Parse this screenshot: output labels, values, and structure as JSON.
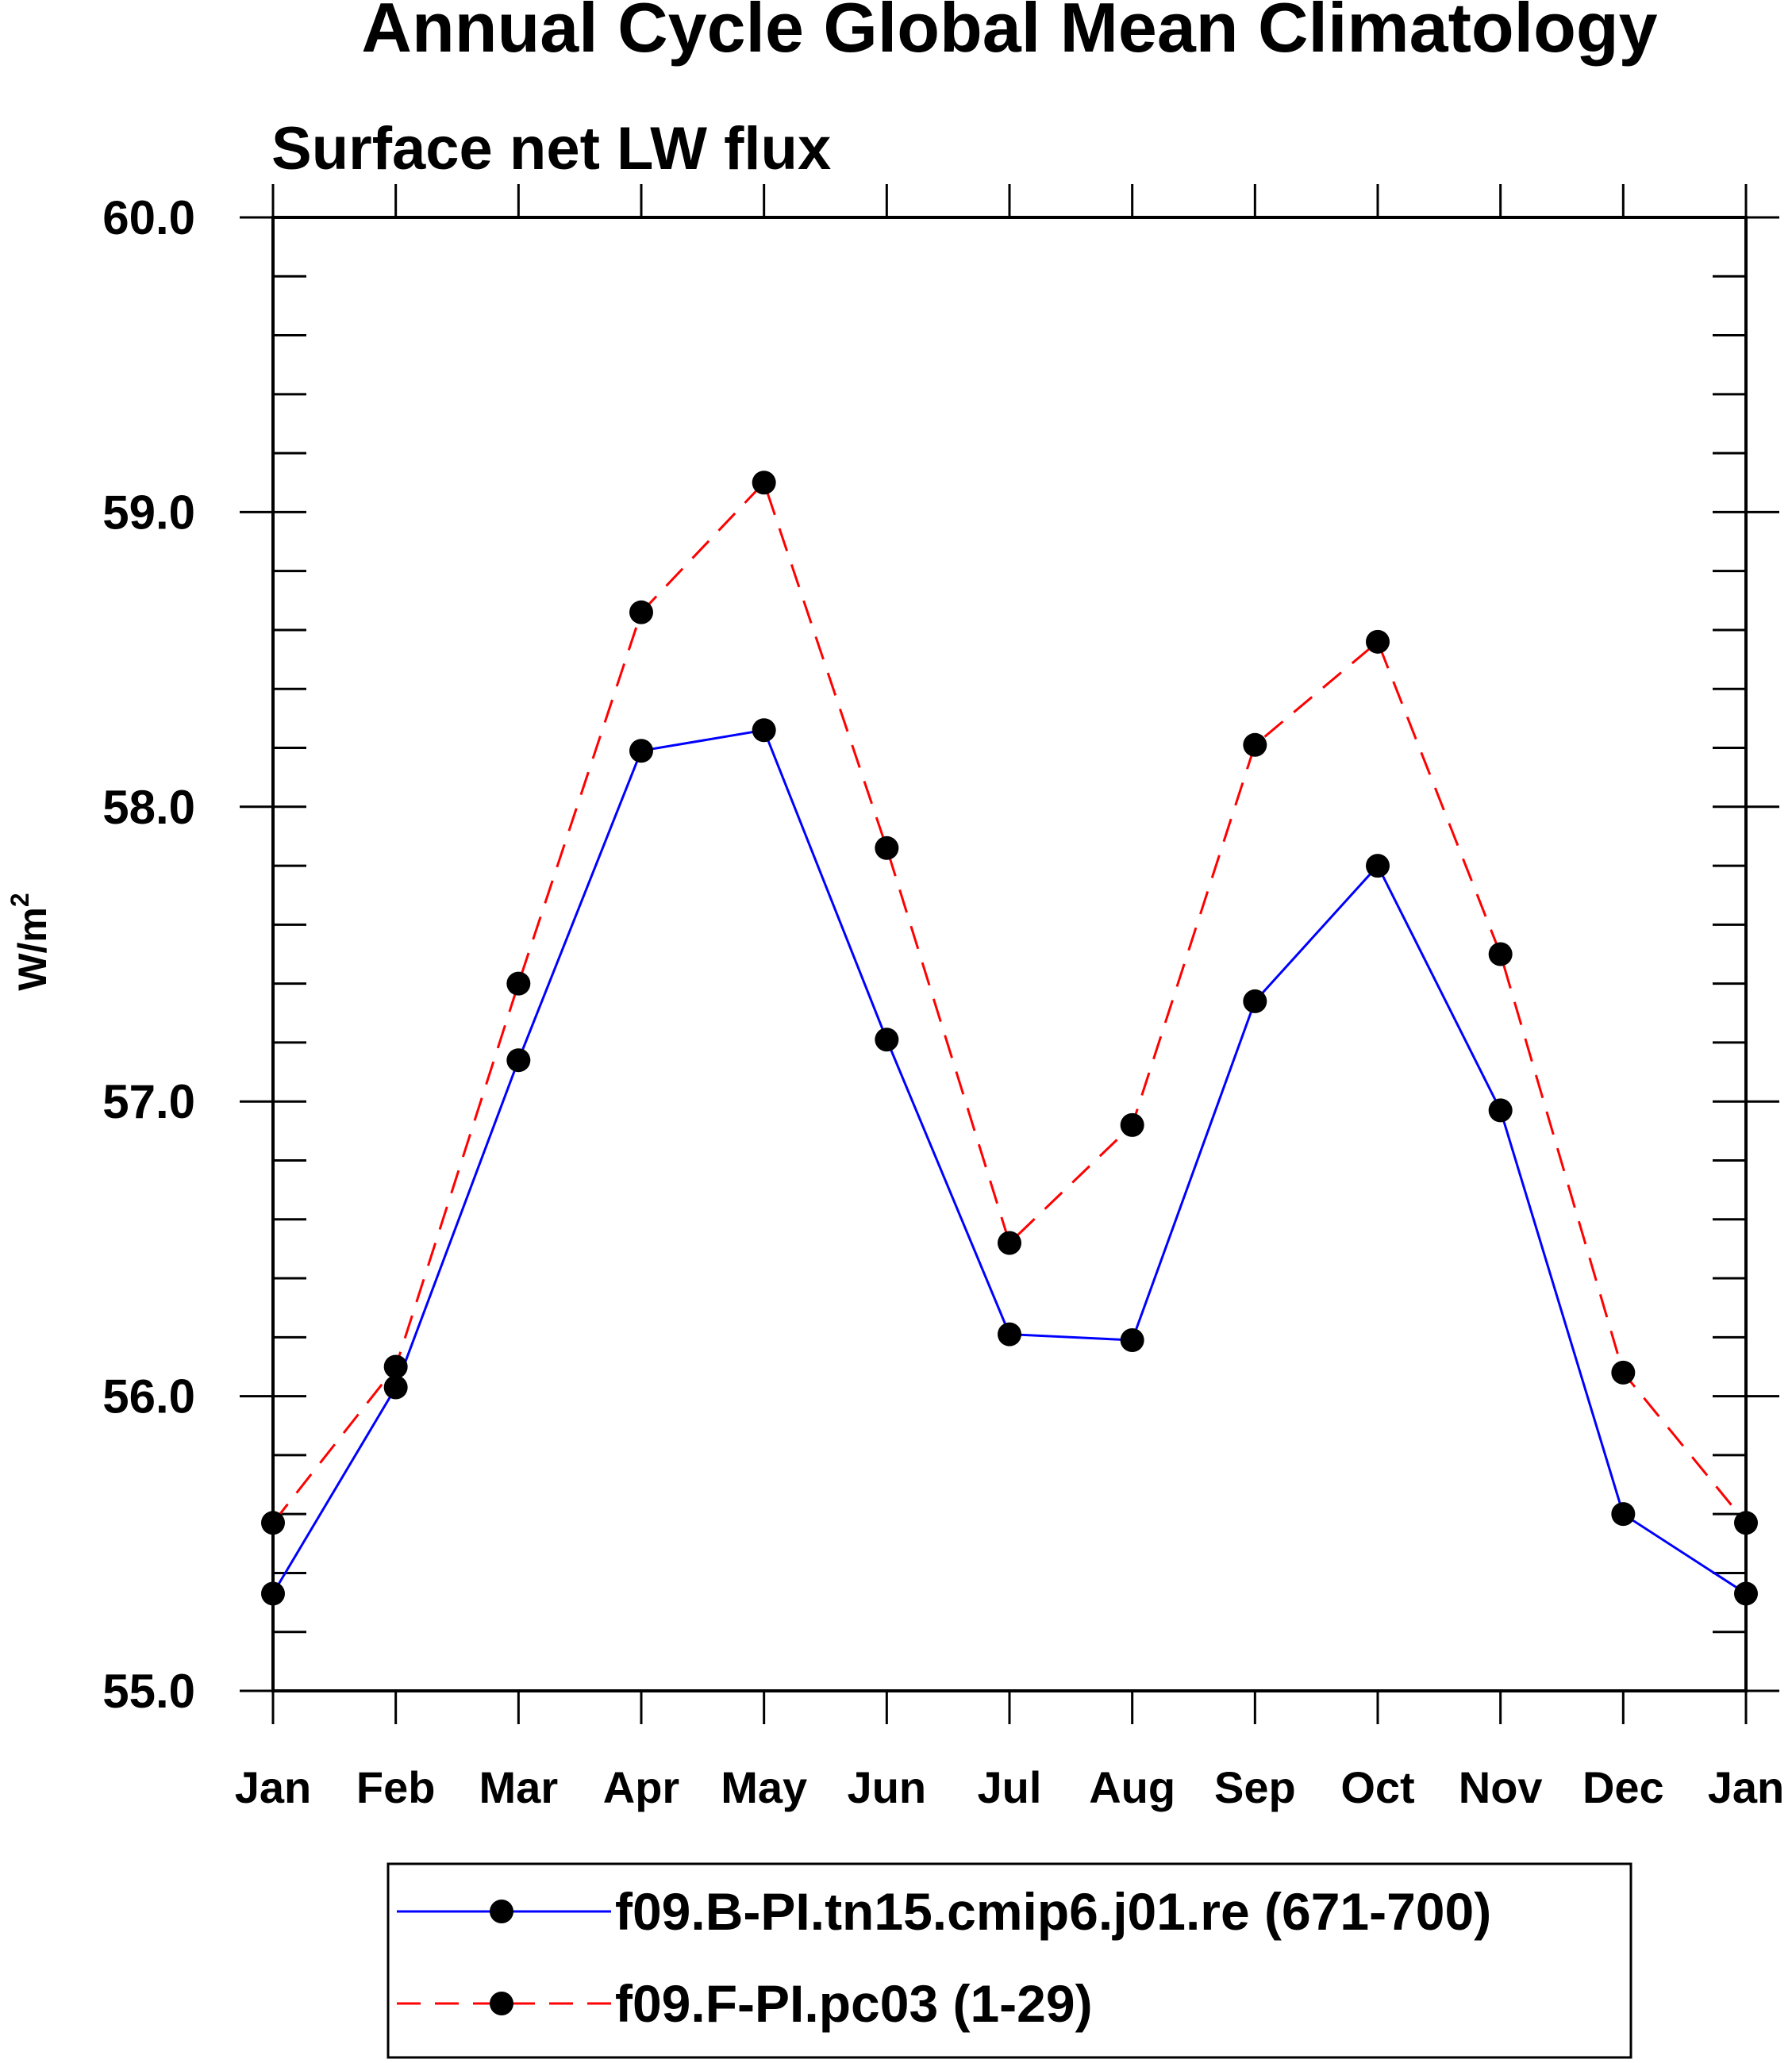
{
  "chart_data": {
    "type": "line",
    "title": "Annual Cycle Global Mean Climatology",
    "subtitle": "Surface net LW flux",
    "ylabel_base": "W/m",
    "ylabel_sup": "2",
    "xlabel": "",
    "categories": [
      "Jan",
      "Feb",
      "Mar",
      "Apr",
      "May",
      "Jun",
      "Jul",
      "Aug",
      "Sep",
      "Oct",
      "Nov",
      "Dec",
      "Jan"
    ],
    "ylim": [
      55.0,
      60.0
    ],
    "y_major_ticks": [
      55.0,
      56.0,
      57.0,
      58.0,
      59.0,
      60.0
    ],
    "y_tick_labels": [
      "55.0",
      "56.0",
      "57.0",
      "58.0",
      "59.0",
      "60.0"
    ],
    "y_minor_step": 0.2,
    "grid": false,
    "legend_position": "bottom",
    "series": [
      {
        "name": "f09.B-PI.tn15.cmip6.j01.re (671-700)",
        "color": "#0000ff",
        "dash": "solid",
        "marker": "filled-circle",
        "values": [
          55.33,
          56.03,
          57.14,
          58.19,
          58.26,
          57.21,
          56.21,
          56.19,
          57.34,
          57.8,
          56.97,
          55.6,
          55.33
        ]
      },
      {
        "name": "f09.F-PI.pc03 (1-29)",
        "color": "#ff0000",
        "dash": "dashed",
        "marker": "filled-circle",
        "values": [
          55.57,
          56.1,
          57.4,
          58.66,
          59.1,
          57.86,
          56.52,
          56.92,
          58.21,
          58.56,
          57.5,
          56.08,
          55.57
        ]
      }
    ]
  }
}
